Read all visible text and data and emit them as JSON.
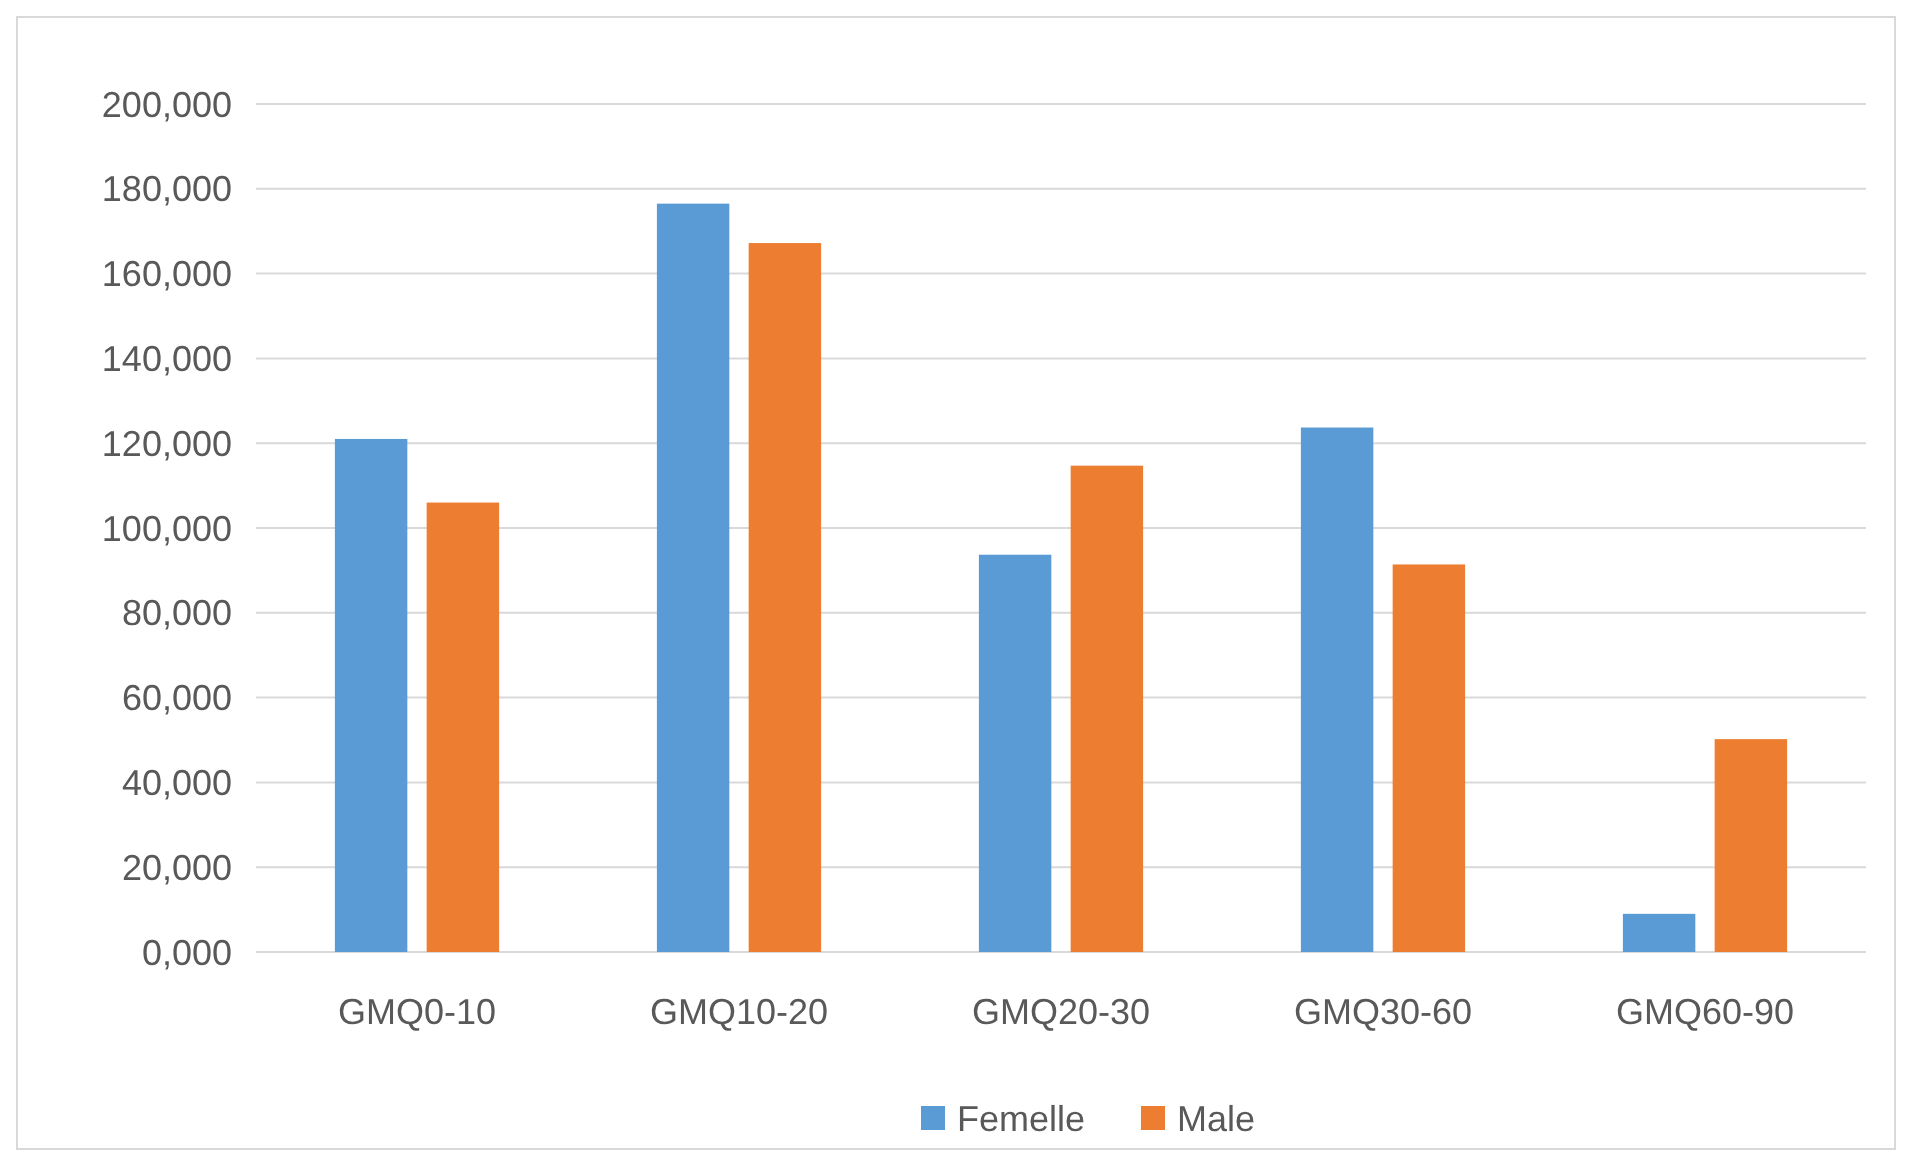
{
  "chart_data": {
    "type": "bar",
    "categories": [
      "GMQ0-10",
      "GMQ10-20",
      "GMQ20-30",
      "GMQ30-60",
      "GMQ60-90"
    ],
    "series": [
      {
        "name": "Femelle",
        "color": "#5b9bd5",
        "values": [
          121000,
          176500,
          93700,
          123700,
          9000
        ]
      },
      {
        "name": "Male",
        "color": "#ed7d31",
        "values": [
          106000,
          167200,
          114700,
          91400,
          50200
        ]
      }
    ],
    "ylim": [
      0,
      200000
    ],
    "yticks": [
      {
        "value": 0,
        "label": "0,000"
      },
      {
        "value": 20000,
        "label": "20,000"
      },
      {
        "value": 40000,
        "label": "40,000"
      },
      {
        "value": 60000,
        "label": "60,000"
      },
      {
        "value": 80000,
        "label": "80,000"
      },
      {
        "value": 100000,
        "label": "100,000"
      },
      {
        "value": 120000,
        "label": "120,000"
      },
      {
        "value": 140000,
        "label": "140,000"
      },
      {
        "value": 160000,
        "label": "160,000"
      },
      {
        "value": 180000,
        "label": "180,000"
      },
      {
        "value": 200000,
        "label": "200,000"
      }
    ],
    "grid": "y",
    "legend": "bottom"
  }
}
